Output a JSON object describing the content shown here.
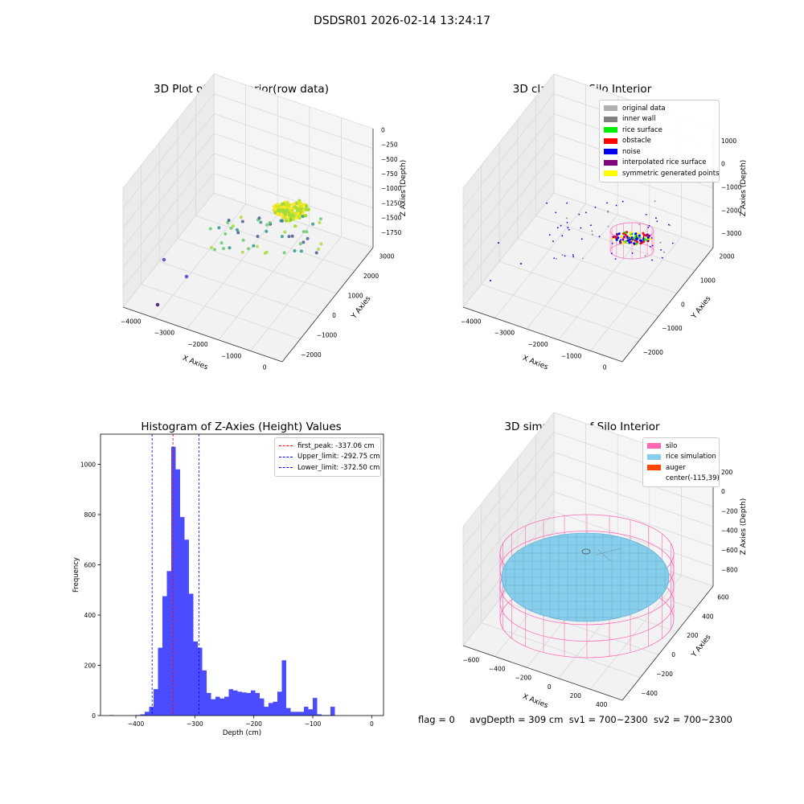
{
  "figure": {
    "suptitle": "DSDSR01 2026-02-14 13:24:17",
    "footer": {
      "flag": "flag = 0",
      "avg_depth": "avgDepth = 309 cm",
      "sv1": "sv1 = 700~2300",
      "sv2": "sv2 = 700~2300"
    }
  },
  "chart_data": [
    {
      "type": "scatter",
      "projection": "3d",
      "title": "3D Plot of Silo Interior(row data)",
      "xlabel": "X Axies",
      "ylabel": "Y Axies",
      "zlabel": "Z Axies (Depth)",
      "x_ticks": [
        "−4000",
        "−3000",
        "−2000",
        "−1000",
        "0"
      ],
      "y_ticks": [
        "−2000",
        "−1000",
        "0",
        "1000",
        "2000",
        "3000"
      ],
      "z_ticks": [
        "0",
        "−250",
        "−500",
        "−750",
        "−1000",
        "−1250",
        "−1500",
        "−1750"
      ],
      "colormap": "viridis",
      "grid": true
    },
    {
      "type": "scatter",
      "projection": "3d",
      "title": "3D classify of Silo Interior",
      "xlabel": "X Axies",
      "ylabel": "Y Axies",
      "zlabel": "Z Axies (Depth)",
      "x_ticks": [
        "−4000",
        "−3000",
        "−2000",
        "−1000",
        "0"
      ],
      "y_ticks": [
        "−2000",
        "−1000",
        "0",
        "1000",
        "2000"
      ],
      "z_ticks": [
        "1000",
        "0",
        "−1000",
        "−2000",
        "−3000"
      ],
      "legend": {
        "placement": "upper-right",
        "entries": [
          {
            "label": "original data",
            "color": "#b0b0b0"
          },
          {
            "label": "inner wall",
            "color": "#808080"
          },
          {
            "label": "rice surface",
            "color": "#00ee00"
          },
          {
            "label": "obstacle",
            "color": "#ff0000"
          },
          {
            "label": "noise",
            "color": "#0000ee"
          },
          {
            "label": "interpolated rice surface",
            "color": "#800080"
          },
          {
            "label": "symmetric generated points",
            "color": "#ffff00"
          }
        ]
      },
      "grid": true
    },
    {
      "type": "bar",
      "title": "Histogram of Z-Axies (Height) Values",
      "xlabel": "Depth (cm)",
      "ylabel": "Frequency",
      "xlim": [
        -460,
        20
      ],
      "ylim": [
        0,
        1120
      ],
      "x_ticks": [
        -400,
        -300,
        -200,
        -100,
        0
      ],
      "y_ticks": [
        0,
        200,
        400,
        600,
        800,
        1000
      ],
      "bin_width": 7.5,
      "bins": [
        [
          -445,
          2
        ],
        [
          -400,
          2
        ],
        [
          -392.5,
          5
        ],
        [
          -385,
          15
        ],
        [
          -377.5,
          35
        ],
        [
          -370,
          105
        ],
        [
          -362.5,
          270
        ],
        [
          -355,
          475
        ],
        [
          -347.5,
          575
        ],
        [
          -340,
          1070
        ],
        [
          -332.5,
          980
        ],
        [
          -325,
          790
        ],
        [
          -317.5,
          700
        ],
        [
          -310,
          485
        ],
        [
          -302.5,
          295
        ],
        [
          -295,
          270
        ],
        [
          -287.5,
          180
        ],
        [
          -280,
          90
        ],
        [
          -272.5,
          65
        ],
        [
          -265,
          75
        ],
        [
          -257.5,
          68
        ],
        [
          -250,
          75
        ],
        [
          -242.5,
          105
        ],
        [
          -235,
          100
        ],
        [
          -227.5,
          95
        ],
        [
          -220,
          92
        ],
        [
          -212.5,
          90
        ],
        [
          -205,
          100
        ],
        [
          -197.5,
          90
        ],
        [
          -190,
          68
        ],
        [
          -182.5,
          35
        ],
        [
          -175,
          50
        ],
        [
          -167.5,
          55
        ],
        [
          -160,
          95
        ],
        [
          -152.5,
          220
        ],
        [
          -145,
          30
        ],
        [
          -137.5,
          15
        ],
        [
          -130,
          15
        ],
        [
          -122.5,
          15
        ],
        [
          -115,
          35
        ],
        [
          -107.5,
          25
        ],
        [
          -100,
          70
        ],
        [
          -92.5,
          5
        ],
        [
          -85,
          2
        ],
        [
          -77.5,
          2
        ],
        [
          -70,
          35
        ]
      ],
      "vlines": [
        {
          "x": -337.06,
          "color": "#ff0000",
          "label": "first_peak: -337.06 cm"
        },
        {
          "x": -292.75,
          "color": "#0000ff",
          "label": "Upper_limit: -292.75 cm"
        },
        {
          "x": -372.5,
          "color": "#0000ff",
          "label": "Lower_limit: -372.50 cm"
        }
      ],
      "bar_color": "#4b4bff",
      "legend_placement": "upper-right"
    },
    {
      "type": "scatter",
      "projection": "3d",
      "title": "3D simulation of Silo Interior",
      "xlabel": "X Axies",
      "ylabel": "Y Axies",
      "zlabel": "Z Axies (Depth)",
      "x_ticks": [
        "−600",
        "−400",
        "−200",
        "0",
        "200",
        "400"
      ],
      "y_ticks": [
        "−400",
        "−200",
        "0",
        "200",
        "400",
        "600"
      ],
      "z_ticks": [
        "200",
        "0",
        "−200",
        "−400",
        "−600",
        "−800"
      ],
      "legend": {
        "placement": "upper-right",
        "entries": [
          {
            "label": "silo",
            "color": "#ff69b4"
          },
          {
            "label": "rice simulation",
            "color": "#87ceeb"
          },
          {
            "label": "auger",
            "color": "#ff4500"
          },
          {
            "label": "center(-115,39)",
            "color": ""
          }
        ]
      },
      "grid": true
    }
  ]
}
